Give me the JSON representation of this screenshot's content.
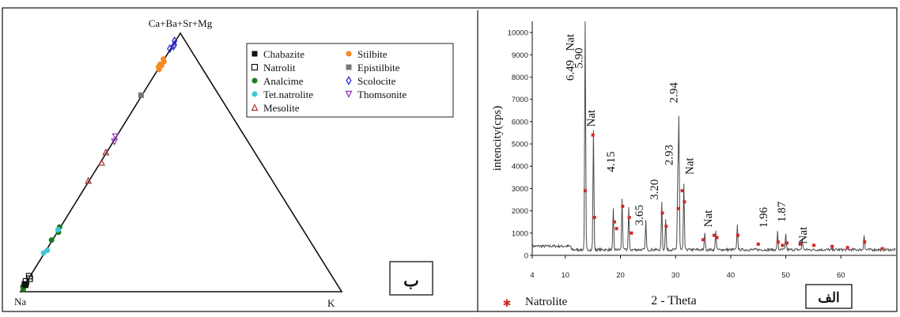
{
  "ternary": {
    "apex_top": "Ca+Ba+Sr+Mg",
    "apex_left": "Na",
    "apex_right": "K",
    "panel_label": "ب",
    "legend": [
      {
        "name": "Chabazite",
        "marker": "filled-square",
        "color": "#111111"
      },
      {
        "name": "Natrolit",
        "marker": "open-square",
        "color": "#111111"
      },
      {
        "name": "Analcime",
        "marker": "filled-circle",
        "color": "#1e7a1e"
      },
      {
        "name": "Tet.natrolite",
        "marker": "filled-circle",
        "color": "#3fc7d6"
      },
      {
        "name": "Mesolite",
        "marker": "open-triangle",
        "color": "#a63232"
      },
      {
        "name": "Stilbite",
        "marker": "filled-circle",
        "color": "#f28a1e"
      },
      {
        "name": "Epistilbite",
        "marker": "filled-square",
        "color": "#777777"
      },
      {
        "name": "Scolocite",
        "marker": "open-diamond",
        "color": "#2b2bd6"
      },
      {
        "name": "Thomsonite",
        "marker": "open-triangle-down",
        "color": "#8b2fb5"
      }
    ],
    "points": [
      {
        "mineral": "Scolocite",
        "t": [
          0.97,
          0.955,
          0.94,
          0.95
        ]
      },
      {
        "mineral": "Stilbite",
        "t": [
          0.9,
          0.89,
          0.88,
          0.875,
          0.87,
          0.86
        ]
      },
      {
        "mineral": "Epistilbite",
        "t": [
          0.76
        ]
      },
      {
        "mineral": "Thomsonite",
        "t": [
          0.6,
          0.58
        ]
      },
      {
        "mineral": "Mesolite",
        "t": [
          0.54,
          0.5,
          0.43
        ]
      },
      {
        "mineral": "Analcime",
        "t": [
          0.25,
          0.23,
          0.2,
          0.03,
          0.02,
          0.01
        ]
      },
      {
        "mineral": "Tet.natrolite",
        "t": [
          0.24,
          0.16,
          0.15
        ]
      },
      {
        "mineral": "Natrolit",
        "t": [
          0.06,
          0.05,
          0.04
        ]
      },
      {
        "mineral": "Chabazite",
        "t": [
          0.03,
          0.025
        ]
      }
    ]
  },
  "xrd": {
    "panel_label": "الف",
    "legend_label": "Natrolite",
    "chart_data": {
      "type": "line",
      "title": "",
      "xlabel": "2 - Theta",
      "ylabel": "intencity(cps)",
      "xlim": [
        4,
        70
      ],
      "ylim": [
        0,
        10500
      ],
      "xticks": [
        4,
        10,
        20,
        30,
        40,
        50,
        60
      ],
      "yticks": [
        0,
        1000,
        2000,
        3000,
        4000,
        5000,
        6000,
        7000,
        8000,
        9000,
        10000
      ],
      "series": [
        {
          "kind": "peaks",
          "background": 350,
          "peaks": [
            {
              "x": 13.6,
              "y": 10500
            },
            {
              "x": 15.1,
              "y": 5400
            },
            {
              "x": 18.7,
              "y": 1800
            },
            {
              "x": 20.3,
              "y": 2300
            },
            {
              "x": 21.5,
              "y": 1900
            },
            {
              "x": 24.6,
              "y": 1300
            },
            {
              "x": 27.5,
              "y": 2100
            },
            {
              "x": 28.2,
              "y": 1400
            },
            {
              "x": 30.4,
              "y": 3200
            },
            {
              "x": 30.6,
              "y": 5800
            },
            {
              "x": 31.5,
              "y": 2900
            },
            {
              "x": 35.3,
              "y": 800
            },
            {
              "x": 37.3,
              "y": 900
            },
            {
              "x": 41.2,
              "y": 1100
            },
            {
              "x": 48.5,
              "y": 800
            },
            {
              "x": 50.0,
              "y": 700
            },
            {
              "x": 53.0,
              "y": 500
            },
            {
              "x": 64.2,
              "y": 700
            }
          ]
        }
      ],
      "natrolite_markers": [
        {
          "x": 13.6,
          "y": 2900
        },
        {
          "x": 15.0,
          "y": 5400
        },
        {
          "x": 15.3,
          "y": 1700
        },
        {
          "x": 18.9,
          "y": 1500
        },
        {
          "x": 19.3,
          "y": 1200
        },
        {
          "x": 20.4,
          "y": 2200
        },
        {
          "x": 21.6,
          "y": 1700
        },
        {
          "x": 22.0,
          "y": 1000
        },
        {
          "x": 27.6,
          "y": 1900
        },
        {
          "x": 28.3,
          "y": 1300
        },
        {
          "x": 30.5,
          "y": 2100
        },
        {
          "x": 31.2,
          "y": 2900
        },
        {
          "x": 31.6,
          "y": 2400
        },
        {
          "x": 35.0,
          "y": 700
        },
        {
          "x": 37.0,
          "y": 900
        },
        {
          "x": 37.5,
          "y": 800
        },
        {
          "x": 41.3,
          "y": 900
        },
        {
          "x": 45.0,
          "y": 500
        },
        {
          "x": 48.6,
          "y": 600
        },
        {
          "x": 49.4,
          "y": 450
        },
        {
          "x": 50.2,
          "y": 550
        },
        {
          "x": 52.6,
          "y": 500
        },
        {
          "x": 55.1,
          "y": 450
        },
        {
          "x": 58.4,
          "y": 400
        },
        {
          "x": 61.2,
          "y": 350
        },
        {
          "x": 64.3,
          "y": 600
        },
        {
          "x": 67.5,
          "y": 300
        }
      ],
      "annotations": [
        {
          "text": "6.49",
          "x": 11.5,
          "y": 8300
        },
        {
          "text": "Nat",
          "x": 11.5,
          "y": 9550
        },
        {
          "text": "5.90",
          "x": 13.1,
          "y": 8850
        },
        {
          "text": "Nat",
          "x": 15.3,
          "y": 6150
        },
        {
          "text": "4.15",
          "x": 18.9,
          "y": 4200
        },
        {
          "text": "3.65",
          "x": 24.1,
          "y": 1800
        },
        {
          "text": "3.20",
          "x": 26.8,
          "y": 2950
        },
        {
          "text": "2.93",
          "x": 29.5,
          "y": 4500
        },
        {
          "text": "2.94",
          "x": 30.3,
          "y": 7300
        },
        {
          "text": "Nat",
          "x": 33.2,
          "y": 4000
        },
        {
          "text": "Nat",
          "x": 36.6,
          "y": 1650
        },
        {
          "text": "1.96",
          "x": 46.6,
          "y": 1700
        },
        {
          "text": "1.87",
          "x": 49.9,
          "y": 1950
        },
        {
          "text": "Nat",
          "x": 53.8,
          "y": 900
        }
      ]
    }
  }
}
